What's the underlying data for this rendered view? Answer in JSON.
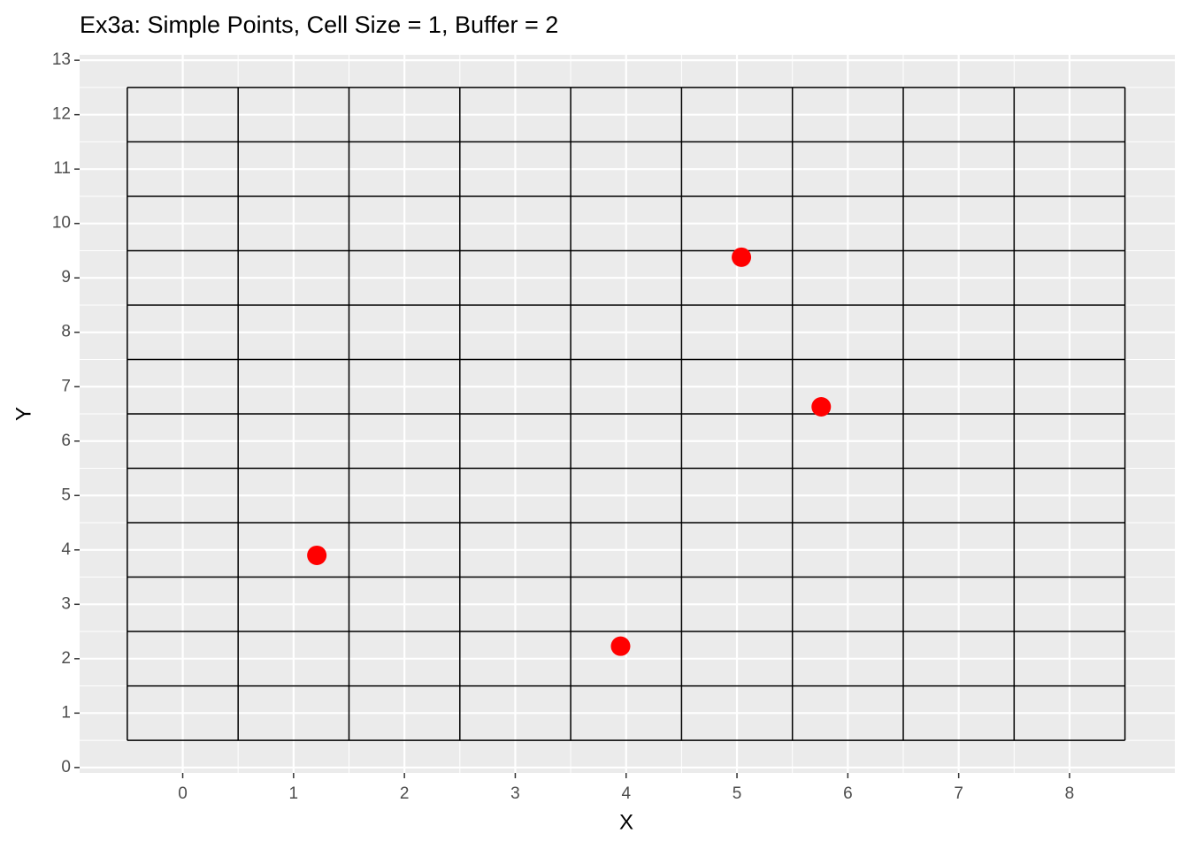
{
  "chart_data": {
    "type": "scatter",
    "title": "Ex3a: Simple Points, Cell Size = 1, Buffer = 2",
    "x_label": "X",
    "y_label": "Y",
    "series": [
      {
        "color": "#ff0000",
        "x": [
          1.21,
          3.95,
          5.04,
          5.76
        ],
        "values": [
          3.9,
          2.23,
          9.38,
          6.63
        ]
      }
    ],
    "cell_edges_x": [
      -0.5,
      0.5,
      1.5,
      2.5,
      3.5,
      4.5,
      5.5,
      6.5,
      7.5,
      8.5
    ],
    "cell_edges_y": [
      0.5,
      1.5,
      2.5,
      3.5,
      4.5,
      5.5,
      6.5,
      7.5,
      8.5,
      9.5,
      10.5,
      11.5,
      12.5
    ],
    "xlim": [
      -0.93,
      8.95
    ],
    "ylim": [
      -0.1,
      13.1
    ],
    "xticks": [
      0,
      1,
      2,
      3,
      4,
      5,
      6,
      7,
      8
    ],
    "yticks": [
      0,
      1,
      2,
      3,
      4,
      5,
      6,
      7,
      8,
      9,
      10,
      11,
      12,
      13
    ],
    "grid": true
  }
}
